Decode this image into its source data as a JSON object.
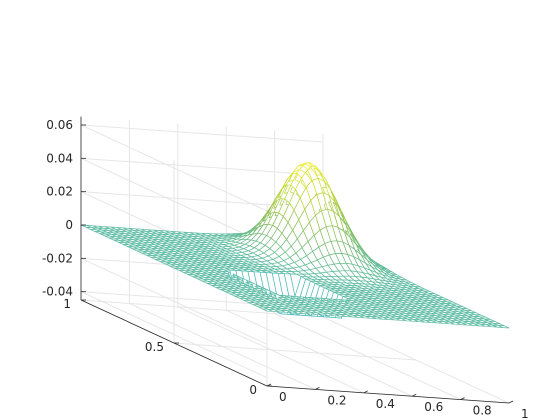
{
  "chart_data": {
    "type": "surface",
    "title": "",
    "xlabel": "",
    "ylabel": "",
    "zlabel": "",
    "colormap": "parula",
    "grid": true,
    "box": "3d axes with grid on back walls",
    "xlim": [
      0,
      1
    ],
    "ylim": [
      0,
      1
    ],
    "zlim": [
      -0.045,
      0.065
    ],
    "x_ticks": [
      0,
      0.2,
      0.4,
      0.6,
      0.8,
      1
    ],
    "x_tick_labels": [
      "0",
      "0.2",
      "0.4",
      "0.6",
      "0.8",
      "1"
    ],
    "y_ticks": [
      0,
      0.5,
      1
    ],
    "y_tick_labels": [
      "0",
      "0.5",
      "1"
    ],
    "z_ticks": [
      -0.04,
      -0.02,
      0,
      0.02,
      0.04,
      0.06
    ],
    "z_tick_labels": [
      "-0.04",
      "-0.02",
      "0",
      "0.02",
      "0.04",
      "0.06"
    ],
    "grid_resolution": 41,
    "features": [
      {
        "kind": "gaussian-peak",
        "center_x": 0.75,
        "center_y": 0.75,
        "height": 0.058,
        "sigma": 0.1
      },
      {
        "kind": "shallow-depression",
        "x_range": [
          0.25,
          0.5
        ],
        "y_range": [
          0.25,
          0.5
        ],
        "depth": -0.012
      },
      {
        "kind": "depression-rim",
        "value": -0.008
      }
    ],
    "colors": {
      "low": "#3eb8d3",
      "mid": "#8cc05a",
      "high": "#f9f11c",
      "axis": "#262626",
      "grid": "#e6e6e6"
    }
  }
}
